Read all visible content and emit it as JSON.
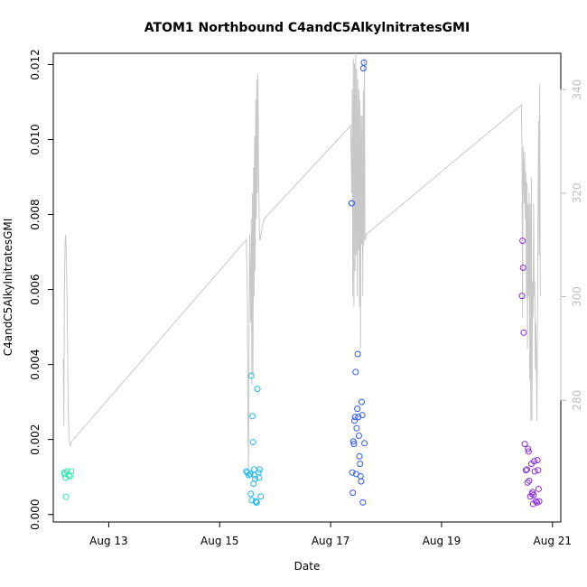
{
  "chart_data": {
    "type": "scatter",
    "title": "ATOM1 Northbound C4andC5AlkylnitratesGMI",
    "xlabel": "Date",
    "ylabel": "C4andC5AlkylnitratesGMI",
    "x_ticks": [
      "Aug 13",
      "Aug 15",
      "Aug 17",
      "Aug 19",
      "Aug 21"
    ],
    "x_tick_values": [
      13,
      15,
      17,
      19,
      21
    ],
    "xlim": [
      12.0,
      21.15
    ],
    "ylim": [
      -0.0002,
      0.0123
    ],
    "y_ticks": [
      0.0,
      0.002,
      0.004,
      0.006,
      0.008,
      0.01,
      0.012
    ],
    "y_tick_labels": [
      "0.000",
      "0.002",
      "0.004",
      "0.006",
      "0.008",
      "0.010",
      "0.012"
    ],
    "y2lim": [
      256.5,
      347
    ],
    "y2_ticks": [
      280,
      300,
      320,
      340
    ],
    "y2_tick_labels": [
      "280",
      "300",
      "320",
      "340"
    ],
    "grid": false,
    "series": [
      {
        "color": "#2ee8b0",
        "x": [
          12.2,
          12.2,
          12.22,
          12.23,
          12.25,
          12.28,
          12.3,
          12.32
        ],
        "y": [
          0.00112,
          0.00108,
          0.00098,
          0.00047,
          0.00115,
          0.00105,
          0.00102,
          0.00115
        ]
      },
      {
        "color": "#22b8f0",
        "x": [
          15.48,
          15.5,
          15.52,
          15.55,
          15.57,
          15.59,
          15.6,
          15.62,
          15.63,
          15.64,
          15.65,
          15.66,
          15.67,
          15.68,
          15.7,
          15.71,
          15.72,
          15.74,
          15.56,
          15.58,
          15.61
        ],
        "y": [
          0.00115,
          0.00112,
          0.00105,
          0.00108,
          0.0037,
          0.00262,
          0.00193,
          0.0012,
          0.00105,
          0.00095,
          0.00035,
          0.00032,
          0.00032,
          0.00335,
          0.00112,
          0.00098,
          0.0012,
          0.00048,
          0.00055,
          0.00038,
          0.00082
        ]
      },
      {
        "color": "#2f5af0",
        "x": [
          17.38,
          17.39,
          17.4,
          17.41,
          17.42,
          17.43,
          17.44,
          17.45,
          17.46,
          17.47,
          17.48,
          17.49,
          17.5,
          17.51,
          17.52,
          17.53,
          17.54,
          17.55,
          17.56,
          17.57,
          17.58,
          17.59,
          17.6,
          17.61,
          17.38
        ],
        "y": [
          0.0083,
          0.00112,
          0.00058,
          0.00195,
          0.00188,
          0.0025,
          0.0026,
          0.0038,
          0.00108,
          0.0023,
          0.00282,
          0.00428,
          0.0026,
          0.0021,
          0.00155,
          0.00135,
          0.00102,
          0.00088,
          0.003,
          0.00265,
          0.00032,
          0.0119,
          0.01205,
          0.0019,
          0.0083
        ]
      },
      {
        "color": "#8a2be2",
        "x": [
          20.45,
          20.46,
          20.47,
          20.48,
          20.5,
          20.52,
          20.54,
          20.55,
          20.56,
          20.57,
          20.58,
          20.6,
          20.62,
          20.63,
          20.64,
          20.65,
          20.66,
          20.67,
          20.68,
          20.7,
          20.72,
          20.73,
          20.74,
          20.75,
          20.76
        ],
        "y": [
          0.00583,
          0.0073,
          0.00658,
          0.00485,
          0.00188,
          0.00118,
          0.0012,
          0.00085,
          0.00175,
          0.00168,
          0.0009,
          0.00048,
          0.00135,
          0.00055,
          0.0006,
          0.00028,
          0.00052,
          0.00142,
          0.00115,
          0.00035,
          0.00032,
          0.00145,
          0.00118,
          0.00068,
          0.00035
        ]
      }
    ],
    "line_series": {
      "axis": "right",
      "color": "#c8c8c8",
      "x": [
        12.18,
        12.19,
        12.2,
        12.21,
        12.22,
        12.23,
        12.24,
        12.25,
        12.27,
        12.29,
        12.31,
        12.33,
        15.48,
        15.5,
        15.51,
        15.52,
        15.53,
        15.54,
        15.55,
        15.56,
        15.57,
        15.58,
        15.59,
        15.6,
        15.61,
        15.62,
        15.63,
        15.64,
        15.65,
        15.66,
        15.67,
        15.68,
        15.69,
        15.7,
        15.71,
        15.72,
        15.73,
        15.74,
        15.75,
        15.76,
        15.78,
        15.8,
        17.36,
        17.37,
        17.38,
        17.39,
        17.4,
        17.41,
        17.42,
        17.43,
        17.44,
        17.45,
        17.46,
        17.47,
        17.48,
        17.49,
        17.5,
        17.51,
        17.52,
        17.53,
        17.54,
        17.55,
        17.56,
        17.57,
        17.58,
        17.59,
        17.6,
        17.61,
        17.62,
        17.63,
        17.64,
        20.44,
        20.45,
        20.46,
        20.47,
        20.48,
        20.49,
        20.5,
        20.51,
        20.52,
        20.53,
        20.54,
        20.55,
        20.56,
        20.57,
        20.58,
        20.59,
        20.6,
        20.61,
        20.62,
        20.63,
        20.64,
        20.65,
        20.66,
        20.67,
        20.68,
        20.69,
        20.7,
        20.71,
        20.72,
        20.73,
        20.74,
        20.75,
        20.76,
        20.77,
        20.78
      ],
      "y": [
        288,
        275,
        300,
        309,
        312,
        310,
        305,
        298,
        278,
        272,
        271,
        272,
        311,
        299,
        276,
        265,
        290,
        312,
        305,
        295,
        315,
        283,
        320,
        285,
        325,
        300,
        331,
        305,
        338,
        315,
        342,
        320,
        343,
        325,
        317,
        311,
        311,
        312,
        312,
        313,
        314,
        315,
        333,
        328,
        320,
        340,
        300,
        346,
        298,
        345,
        305,
        347,
        308,
        344,
        300,
        342,
        309,
        340,
        298,
        338,
        290,
        335,
        310,
        335,
        300,
        340,
        310,
        346,
        311,
        311,
        312,
        337,
        327,
        296,
        329,
        325,
        318,
        328,
        315,
        324,
        300,
        322,
        290,
        318,
        300,
        320,
        284,
        318,
        276,
        323,
        276,
        303,
        296,
        318,
        300,
        303,
        286,
        295,
        286,
        276,
        296,
        318,
        334,
        308,
        341,
        300
      ]
    }
  }
}
